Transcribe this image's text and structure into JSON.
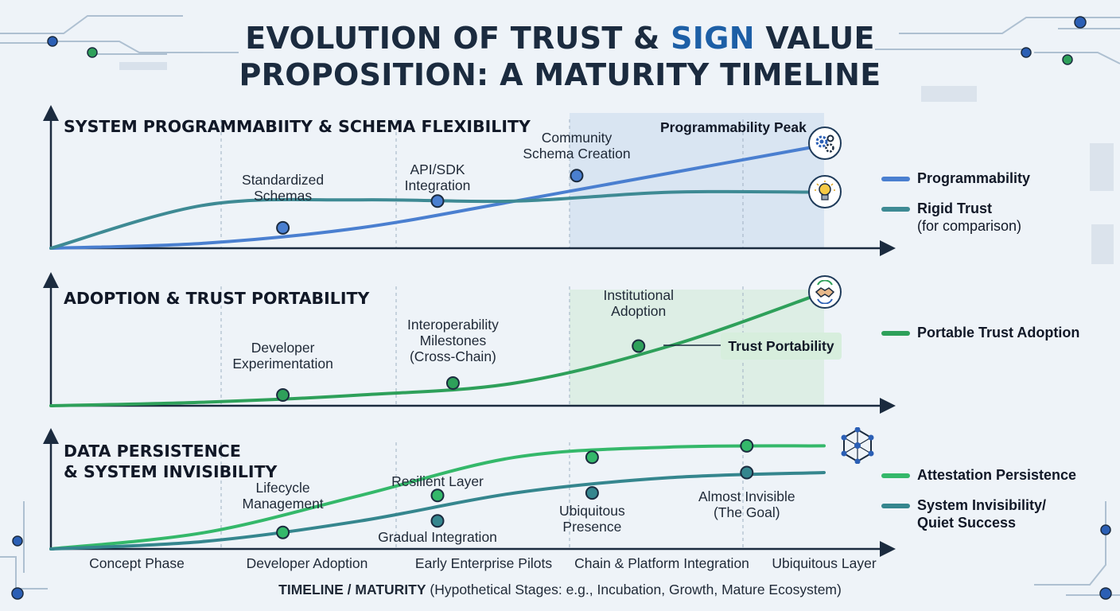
{
  "title": {
    "line1_part1": "EVOLUTION OF TRUST & ",
    "line1_accent": "SIGN",
    "line1_part2": " VALUE",
    "line2": "PROPOSITION: A MATURITY TIMELINE"
  },
  "colors": {
    "programmability": "#4a7fd0",
    "rigid_trust": "#3e8a94",
    "portable_trust": "#2ea05a",
    "attestation": "#34b86a",
    "invisibility": "#35868e",
    "axis": "#1b2b3f"
  },
  "x_axis": {
    "stages": [
      "Concept Phase",
      "Developer Adoption",
      "Early Enterprise Pilots",
      "Chain & Platform Integration",
      "Ubiquitous Layer"
    ],
    "caption_bold": "TIMELINE / MATURITY",
    "caption_rest": " (Hypothetical Stages: e.g., Incubation, Growth, Mature Ecosystem)"
  },
  "chart_data": [
    {
      "type": "line",
      "title": "SYSTEM PROGRAMMABIITY & SCHEMA FLEXIBILITY",
      "x": [
        0,
        1,
        2,
        3,
        4,
        5
      ],
      "ylim": [
        0,
        100
      ],
      "series": [
        {
          "name": "Programmability",
          "values": [
            0,
            4,
            16,
            37,
            59,
            81
          ]
        },
        {
          "name": "Rigid Trust",
          "sub": "(for comparison)",
          "values": [
            0,
            34,
            38,
            37,
            44,
            44
          ]
        }
      ],
      "markers": [
        {
          "series": 0,
          "x": 1.5,
          "y": 16,
          "label": [
            "Standardized",
            "Schemas"
          ]
        },
        {
          "series": 0,
          "x": 2.5,
          "y": 37,
          "label": [
            "API/SDK",
            "Integration"
          ]
        },
        {
          "series": 0,
          "x": 3.4,
          "y": 57,
          "label": [
            "Community",
            "Schema Creation"
          ]
        }
      ],
      "highlight": {
        "label": "Programmability Peak",
        "icon": "gears-icon"
      },
      "end_icon": "lightbulb-icon"
    },
    {
      "type": "line",
      "title": "ADOPTION & TRUST PORTABILITY",
      "x": [
        0,
        1,
        2,
        3,
        4,
        5
      ],
      "ylim": [
        0,
        100
      ],
      "series": [
        {
          "name": "Portable Trust Adoption",
          "values": [
            0,
            3,
            9,
            19,
            50,
            95
          ]
        }
      ],
      "markers": [
        {
          "series": 0,
          "x": 1.5,
          "y": 9,
          "label": [
            "Developer",
            "Experimentation"
          ]
        },
        {
          "series": 0,
          "x": 2.6,
          "y": 19,
          "label": [
            "Interoperability",
            "Milestones",
            "(Cross-Chain)"
          ]
        },
        {
          "series": 0,
          "x": 3.8,
          "y": 50,
          "label": [
            "Institutional",
            "Adoption"
          ]
        }
      ],
      "highlight": {
        "label": "Trust Portability",
        "icon": "handshake-icon"
      }
    },
    {
      "type": "line",
      "title_line1": "DATA PERSISTENCE",
      "title_line2": "& SYSTEM INVISIBILITY",
      "x": [
        0,
        1,
        2,
        3,
        4,
        5
      ],
      "ylim": [
        0,
        100
      ],
      "series": [
        {
          "name": "Attestation Persistence",
          "values": [
            0,
            13,
            42,
            72,
            80,
            81
          ]
        },
        {
          "name": "System Invisibility/ Quiet Success",
          "values": [
            0,
            6,
            22,
            44,
            56,
            60
          ]
        }
      ],
      "markers": [
        {
          "series": 0,
          "x": 1.5,
          "y": 13,
          "label": [
            "Lifecycle",
            "Management"
          ]
        },
        {
          "series": 0,
          "x": 2.5,
          "y": 42,
          "label": [
            "Resilient Layer"
          ]
        },
        {
          "series": 1,
          "x": 2.5,
          "y": 22,
          "label": [
            "Gradual Integration"
          ]
        },
        {
          "series": 0,
          "x": 3.5,
          "y": 72,
          "label": []
        },
        {
          "series": 1,
          "x": 3.5,
          "y": 44,
          "label": [
            "Ubiquitous",
            "Presence"
          ]
        },
        {
          "series": 0,
          "x": 4.5,
          "y": 81,
          "label": []
        },
        {
          "series": 1,
          "x": 4.5,
          "y": 60,
          "label": [
            "Almost Invisible",
            "(The Goal)"
          ]
        }
      ],
      "end_icon": "network-cube-icon"
    }
  ]
}
